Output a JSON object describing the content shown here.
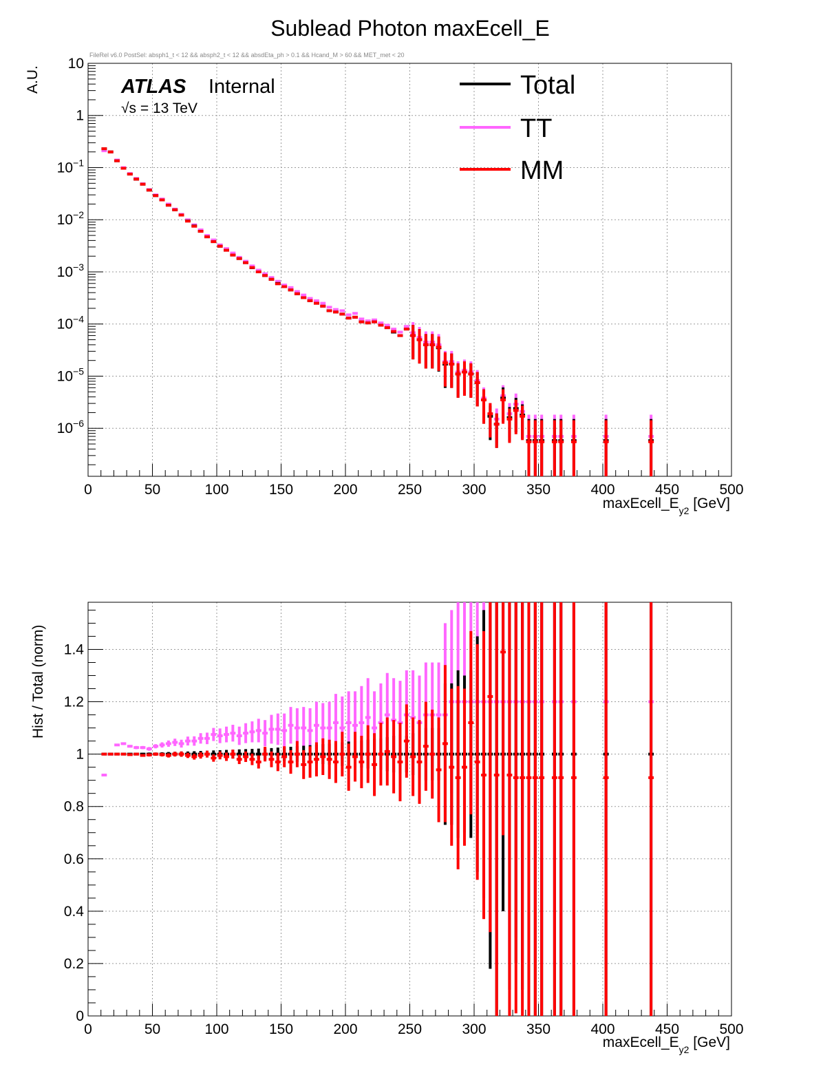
{
  "title": "Sublead Photon maxEcell_E",
  "cut_text": "FileRel v6.0 PostSel:  absph1_t < 12 && absph2_t < 12 && absdEta_ph > 0.1 && Hcand_M > 60 && MET_met < 20",
  "atlas_label": "ATLAS",
  "internal_label": "Internal",
  "energy_label": "√s = 13 TeV",
  "colors": {
    "Total": "#000000",
    "TT": "#ff66ff",
    "MM": "#ff0000"
  },
  "chart_data": [
    {
      "type": "histogram",
      "xlabel_main": "maxEcell_E",
      "xlabel_sub": "y2",
      "xlabel_unit": " [GeV]",
      "ylabel": "A.U.",
      "log_y": true,
      "grid": true,
      "xlim": [
        0,
        500
      ],
      "ylim": [
        1.2e-07,
        10
      ],
      "x_ticks": [
        "0",
        "50",
        "100",
        "150",
        "200",
        "250",
        "300",
        "350",
        "400",
        "450",
        "500"
      ],
      "y_ticks": [
        {
          "value": 10,
          "base": "10",
          "exp": ""
        },
        {
          "value": 1,
          "base": "1",
          "exp": ""
        },
        {
          "value": 0.1,
          "base": "10",
          "exp": "−1"
        },
        {
          "value": 0.01,
          "base": "10",
          "exp": "−2"
        },
        {
          "value": 0.001,
          "base": "10",
          "exp": "−3"
        },
        {
          "value": 0.0001,
          "base": "10",
          "exp": "−4"
        },
        {
          "value": 1e-05,
          "base": "10",
          "exp": "−5"
        },
        {
          "value": 1e-06,
          "base": "10",
          "exp": "−6"
        }
      ],
      "legend": {
        "placement": "top-right",
        "entries": [
          "Total",
          "TT",
          "MM"
        ]
      },
      "x": [
        12.5,
        17.5,
        22.5,
        27.5,
        32.5,
        37.5,
        42.5,
        47.5,
        52.5,
        57.5,
        62.5,
        67.5,
        72.5,
        77.5,
        82.5,
        87.5,
        92.5,
        97.5,
        102.5,
        107.5,
        112.5,
        117.5,
        122.5,
        127.5,
        132.5,
        137.5,
        142.5,
        147.5,
        152.5,
        157.5,
        162.5,
        167.5,
        172.5,
        177.5,
        182.5,
        187.5,
        192.5,
        197.5,
        202.5,
        207.5,
        212.5,
        217.5,
        222.5,
        227.5,
        232.5,
        237.5,
        242.5,
        247.5,
        252.5,
        257.5,
        262.5,
        267.5,
        272.5,
        277.5,
        282.5,
        287.5,
        292.5,
        297.5,
        302.5,
        307.5,
        312.5,
        317.5,
        322.5,
        327.5,
        332.5,
        337.5,
        342.5,
        347.5,
        352.5,
        362.5,
        367.5,
        377.5,
        402.5,
        437.5
      ],
      "series": [
        {
          "name": "Total",
          "values": [
            0.23,
            0.2,
            0.135,
            0.097,
            0.075,
            0.06,
            0.048,
            0.037,
            0.029,
            0.024,
            0.019,
            0.0155,
            0.0123,
            0.0095,
            0.0076,
            0.006,
            0.0047,
            0.0038,
            0.0031,
            0.0026,
            0.0021,
            0.0018,
            0.0015,
            0.0012,
            0.001,
            0.00085,
            0.00072,
            0.0006,
            0.00052,
            0.00045,
            0.00038,
            0.00032,
            0.00028,
            0.00025,
            0.00022,
            0.00018,
            0.00017,
            0.000155,
            0.00013,
            0.000135,
            0.00011,
            0.000105,
            0.00011,
            9.5e-05,
            8.5e-05,
            7e-05,
            6e-05,
            8e-05,
            6e-05,
            5e-05,
            4e-05,
            4e-05,
            3.5e-05,
            1.7e-05,
            1.7e-05,
            1.1e-05,
            1.2e-05,
            1.1e-05,
            7.5e-06,
            3.5e-06,
            1.7e-06,
            1.2e-06,
            3.8e-06,
            1.6e-06,
            2.4e-06,
            1.8e-06,
            5.8e-07,
            5.8e-07,
            5.8e-07,
            5.8e-07,
            5.8e-07,
            5.8e-07,
            5.8e-07,
            5.8e-07
          ]
        },
        {
          "name": "TT",
          "values": [
            0.21,
            0.2,
            0.14,
            0.1,
            0.077,
            0.062,
            0.049,
            0.038,
            0.03,
            0.025,
            0.02,
            0.016,
            0.0127,
            0.01,
            0.008,
            0.0064,
            0.005,
            0.0041,
            0.0033,
            0.0028,
            0.0023,
            0.0019,
            0.0016,
            0.0013,
            0.00108,
            0.00092,
            0.00078,
            0.00066,
            0.00056,
            0.0005,
            0.00042,
            0.00036,
            0.00031,
            0.00028,
            0.00025,
            0.00021,
            0.00019,
            0.00018,
            0.00015,
            0.00016,
            0.000125,
            0.000115,
            0.00012,
            0.000105,
            9.5e-05,
            8e-05,
            7e-05,
            9e-05,
            6.8e-05,
            5.5e-05,
            4.5e-05,
            4.5e-05,
            4e-05,
            1.9e-05,
            1.9e-05,
            1.2e-05,
            1.3e-05,
            1.2e-05,
            8.2e-06,
            3.8e-06,
            1.9e-06,
            1.5e-06,
            4.2e-06,
            1.9e-06,
            2.9e-06,
            2.1e-06,
            7e-07,
            7e-07,
            7e-07,
            7e-07,
            7e-07,
            7e-07,
            7e-07,
            7e-07
          ]
        },
        {
          "name": "MM",
          "values": [
            0.23,
            0.2,
            0.135,
            0.097,
            0.075,
            0.06,
            0.048,
            0.037,
            0.029,
            0.024,
            0.019,
            0.0155,
            0.0123,
            0.0094,
            0.0075,
            0.006,
            0.0047,
            0.0038,
            0.0031,
            0.0026,
            0.0021,
            0.0018,
            0.0015,
            0.00121,
            0.001,
            0.00085,
            0.00072,
            0.00059,
            0.00052,
            0.00045,
            0.00038,
            0.00032,
            0.00028,
            0.00025,
            0.00022,
            0.00018,
            0.00017,
            0.000155,
            0.00013,
            0.000135,
            0.00011,
            0.000105,
            0.00011,
            9.5e-05,
            8.5e-05,
            7.2e-05,
            6e-05,
            8e-05,
            6e-05,
            5e-05,
            4e-05,
            4e-05,
            3.6e-05,
            1.8e-05,
            1.7e-05,
            1.1e-05,
            1.2e-05,
            1.1e-05,
            7.5e-06,
            3.5e-06,
            1.9e-06,
            1.2e-06,
            3.5e-06,
            1.5e-06,
            2.2e-06,
            1.7e-06,
            5.5e-07,
            5.5e-07,
            5.5e-07,
            5.5e-07,
            5.5e-07,
            5.5e-07,
            5.5e-07,
            5.5e-07
          ]
        }
      ]
    },
    {
      "type": "ratio",
      "xlabel_main": "maxEcell_E",
      "xlabel_sub": "y2",
      "xlabel_unit": " [GeV]",
      "ylabel": "Hist / Total (norm)",
      "grid": true,
      "xlim": [
        0,
        500
      ],
      "ylim": [
        0,
        1.58
      ],
      "x_ticks": [
        "0",
        "50",
        "100",
        "150",
        "200",
        "250",
        "300",
        "350",
        "400",
        "450",
        "500"
      ],
      "y_ticks": [
        "0",
        "0.2",
        "0.4",
        "0.6",
        "0.8",
        "1",
        "1.2",
        "1.4"
      ],
      "x": [
        12.5,
        17.5,
        22.5,
        27.5,
        32.5,
        37.5,
        42.5,
        47.5,
        52.5,
        57.5,
        62.5,
        67.5,
        72.5,
        77.5,
        82.5,
        87.5,
        92.5,
        97.5,
        102.5,
        107.5,
        112.5,
        117.5,
        122.5,
        127.5,
        132.5,
        137.5,
        142.5,
        147.5,
        152.5,
        157.5,
        162.5,
        167.5,
        172.5,
        177.5,
        182.5,
        187.5,
        192.5,
        197.5,
        202.5,
        207.5,
        212.5,
        217.5,
        222.5,
        227.5,
        232.5,
        237.5,
        242.5,
        247.5,
        252.5,
        257.5,
        262.5,
        267.5,
        272.5,
        277.5,
        282.5,
        287.5,
        292.5,
        297.5,
        302.5,
        307.5,
        312.5,
        317.5,
        322.5,
        327.5,
        332.5,
        337.5,
        342.5,
        347.5,
        352.5,
        362.5,
        367.5,
        377.5,
        402.5,
        437.5
      ],
      "series": [
        {
          "name": "Total",
          "values": [
            1,
            1,
            1,
            1,
            1,
            1,
            1,
            1,
            1,
            1,
            1,
            1,
            1,
            1,
            1,
            1,
            1,
            1,
            1,
            1,
            1,
            1,
            1,
            1,
            1,
            1,
            1,
            1,
            1,
            1,
            1,
            1,
            1,
            1,
            1,
            1,
            1,
            1,
            1,
            1,
            1,
            1,
            1,
            1,
            1,
            1,
            1,
            1,
            1,
            1,
            1,
            1,
            1,
            1,
            1,
            1,
            1,
            1,
            1,
            1,
            1,
            1,
            1,
            1,
            1,
            1,
            1,
            1,
            1,
            1,
            1,
            1,
            1,
            1
          ],
          "errors": [
            0.003,
            0.003,
            0.003,
            0.004,
            0.004,
            0.005,
            0.005,
            0.006,
            0.006,
            0.007,
            0.008,
            0.009,
            0.01,
            0.01,
            0.011,
            0.012,
            0.013,
            0.014,
            0.015,
            0.016,
            0.017,
            0.018,
            0.019,
            0.02,
            0.021,
            0.022,
            0.023,
            0.025,
            0.026,
            0.028,
            0.03,
            0.032,
            0.034,
            0.036,
            0.038,
            0.04,
            0.042,
            0.045,
            0.048,
            0.05,
            0.052,
            0.055,
            0.058,
            0.06,
            0.065,
            0.07,
            0.075,
            0.07,
            0.08,
            0.09,
            0.1,
            0.1,
            0.1,
            0.27,
            0.27,
            0.32,
            0.3,
            0.32,
            0.45,
            0.55,
            0.82,
            1.0,
            0.6,
            0.9,
            0.8,
            0.9,
            1.0,
            1.0,
            1.0,
            1.0,
            1.0,
            1.0,
            1.0,
            1.0
          ]
        },
        {
          "name": "TT",
          "values": [
            0.92,
            1.0,
            1.035,
            1.04,
            1.03,
            1.025,
            1.025,
            1.02,
            1.03,
            1.035,
            1.04,
            1.045,
            1.04,
            1.05,
            1.05,
            1.06,
            1.06,
            1.075,
            1.07,
            1.075,
            1.08,
            1.07,
            1.08,
            1.085,
            1.09,
            1.08,
            1.095,
            1.095,
            1.09,
            1.11,
            1.1,
            1.1,
            1.09,
            1.11,
            1.1,
            1.1,
            1.12,
            1.1,
            1.12,
            1.11,
            1.12,
            1.14,
            1.1,
            1.12,
            1.15,
            1.13,
            1.12,
            1.15,
            1.14,
            1.12,
            1.15,
            1.15,
            1.15,
            1.15,
            1.2,
            1.2,
            1.2,
            1.2,
            1.2,
            1.2,
            1.2,
            1.2,
            1.2,
            1.2,
            1.2,
            1.2,
            1.2,
            1.2,
            1.2,
            1.2,
            1.2,
            1.2,
            1.2,
            1.2
          ],
          "errors": [
            0.005,
            0.004,
            0.004,
            0.005,
            0.005,
            0.006,
            0.006,
            0.007,
            0.008,
            0.01,
            0.012,
            0.014,
            0.015,
            0.017,
            0.018,
            0.02,
            0.022,
            0.025,
            0.028,
            0.03,
            0.032,
            0.035,
            0.038,
            0.04,
            0.045,
            0.05,
            0.055,
            0.06,
            0.065,
            0.07,
            0.075,
            0.08,
            0.085,
            0.09,
            0.095,
            0.1,
            0.11,
            0.12,
            0.12,
            0.13,
            0.14,
            0.15,
            0.14,
            0.15,
            0.16,
            0.16,
            0.16,
            0.17,
            0.18,
            0.18,
            0.2,
            0.2,
            0.2,
            0.35,
            0.35,
            0.4,
            0.4,
            0.4,
            0.5,
            0.6,
            0.9,
            1.0,
            0.7,
            1.0,
            0.9,
            1.0,
            1.0,
            1.0,
            1.0,
            1.0,
            1.0,
            1.0,
            1.0,
            1.0
          ]
        },
        {
          "name": "MM",
          "values": [
            1.0,
            1.0,
            1.0,
            1.0,
            0.998,
            1.0,
            0.995,
            0.997,
            1.0,
            0.998,
            0.995,
            1.0,
            1.0,
            0.995,
            0.99,
            0.995,
            1.0,
            0.985,
            0.995,
            0.99,
            1.0,
            0.98,
            0.99,
            0.98,
            0.97,
            1.0,
            0.98,
            0.97,
            0.99,
            0.97,
            1.0,
            0.96,
            0.97,
            0.98,
            0.99,
            0.98,
            0.97,
            1.0,
            0.95,
            0.99,
            0.97,
            1.0,
            0.96,
            1.0,
            1.01,
            0.99,
            0.97,
            1.05,
            0.99,
            0.97,
            1.03,
            1.0,
            0.94,
            1.04,
            0.95,
            0.91,
            0.95,
            1.12,
            0.97,
            0.92,
            1.22,
            0.92,
            1.39,
            0.92,
            0.91,
            0.91,
            0.91,
            0.91,
            0.91,
            0.91,
            0.91,
            0.91,
            0.91,
            0.91
          ],
          "errors": [
            0.003,
            0.003,
            0.003,
            0.004,
            0.004,
            0.005,
            0.005,
            0.006,
            0.006,
            0.007,
            0.008,
            0.009,
            0.01,
            0.01,
            0.011,
            0.012,
            0.013,
            0.014,
            0.015,
            0.016,
            0.017,
            0.018,
            0.02,
            0.022,
            0.025,
            0.028,
            0.03,
            0.035,
            0.04,
            0.045,
            0.05,
            0.055,
            0.06,
            0.065,
            0.07,
            0.075,
            0.08,
            0.085,
            0.09,
            0.095,
            0.1,
            0.11,
            0.12,
            0.12,
            0.13,
            0.14,
            0.15,
            0.14,
            0.15,
            0.16,
            0.17,
            0.17,
            0.2,
            0.3,
            0.3,
            0.35,
            0.3,
            0.35,
            0.45,
            0.55,
            0.9,
            1.0,
            0.7,
            1.0,
            0.9,
            1.0,
            1.0,
            1.0,
            1.0,
            1.0,
            1.0,
            1.0,
            1.0,
            1.0
          ]
        }
      ]
    }
  ]
}
